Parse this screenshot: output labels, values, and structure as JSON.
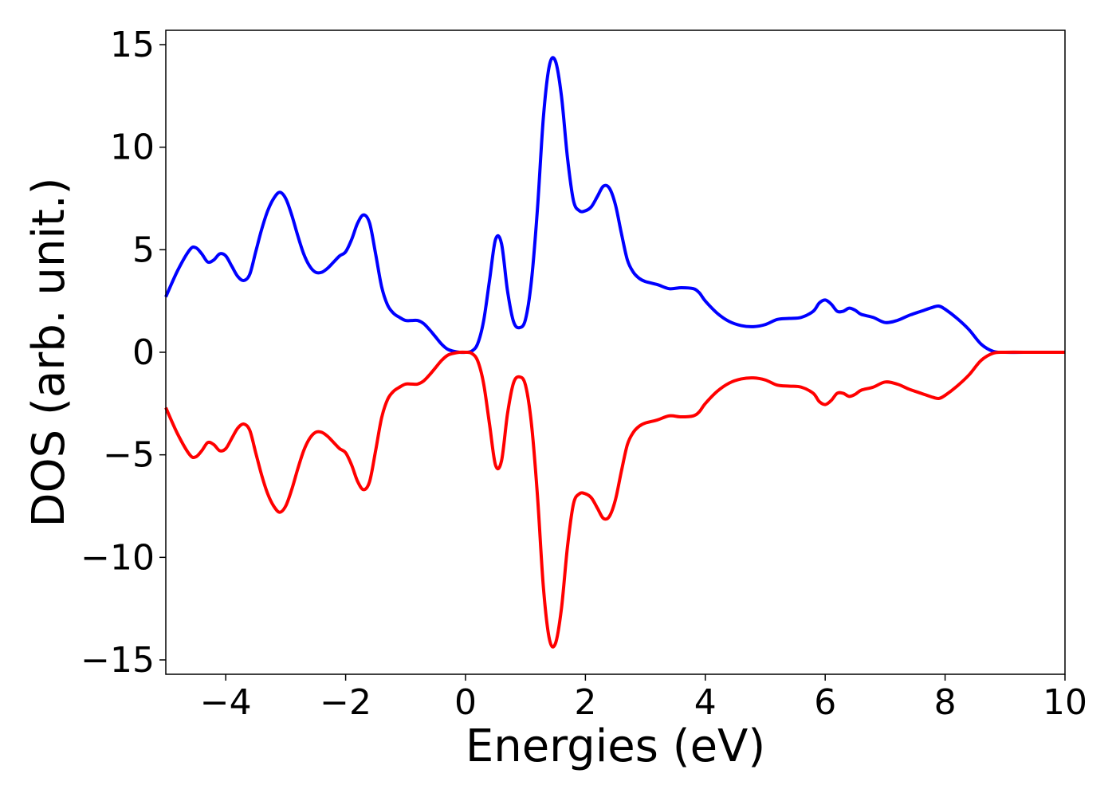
{
  "chart_data": {
    "type": "line",
    "title": "",
    "xlabel": "Energies (eV)",
    "ylabel": "DOS (arb. unit.)",
    "xlim": [
      -5,
      10
    ],
    "ylim": [
      -15.7,
      15.7
    ],
    "xticks": [
      -4,
      -2,
      0,
      2,
      4,
      6,
      8,
      10
    ],
    "yticks": [
      15,
      10,
      5,
      0,
      -5,
      -10,
      -15
    ],
    "xtick_labels": [
      "−4",
      "−2",
      "0",
      "2",
      "4",
      "6",
      "8",
      "10"
    ],
    "ytick_labels": [
      "15",
      "10",
      "5",
      "0",
      "−5",
      "−10",
      "−15"
    ],
    "grid": false,
    "legend": "none",
    "series": [
      {
        "color": "#0000ff",
        "x": [
          -5.0,
          -4.8,
          -4.6,
          -4.5,
          -4.4,
          -4.3,
          -4.2,
          -4.1,
          -4.0,
          -3.9,
          -3.8,
          -3.7,
          -3.6,
          -3.5,
          -3.4,
          -3.3,
          -3.2,
          -3.1,
          -3.0,
          -2.9,
          -2.8,
          -2.7,
          -2.6,
          -2.5,
          -2.4,
          -2.3,
          -2.2,
          -2.1,
          -2.0,
          -1.9,
          -1.8,
          -1.7,
          -1.6,
          -1.5,
          -1.4,
          -1.3,
          -1.2,
          -1.1,
          -1.0,
          -0.9,
          -0.8,
          -0.7,
          -0.6,
          -0.5,
          -0.4,
          -0.3,
          -0.2,
          -0.1,
          0.0,
          0.1,
          0.2,
          0.3,
          0.4,
          0.5,
          0.6,
          0.7,
          0.8,
          0.9,
          1.0,
          1.1,
          1.2,
          1.3,
          1.4,
          1.5,
          1.6,
          1.7,
          1.8,
          1.9,
          2.0,
          2.1,
          2.2,
          2.3,
          2.4,
          2.5,
          2.6,
          2.7,
          2.8,
          2.9,
          3.0,
          3.2,
          3.4,
          3.6,
          3.8,
          3.9,
          4.0,
          4.2,
          4.4,
          4.6,
          4.8,
          5.0,
          5.2,
          5.4,
          5.6,
          5.8,
          5.9,
          6.0,
          6.1,
          6.2,
          6.3,
          6.4,
          6.5,
          6.6,
          6.8,
          7.0,
          7.2,
          7.4,
          7.6,
          7.8,
          7.9,
          8.0,
          8.2,
          8.4,
          8.6,
          8.8,
          9.0,
          9.5,
          10.0
        ],
        "values": [
          2.7,
          4.0,
          5.0,
          5.1,
          4.8,
          4.4,
          4.5,
          4.8,
          4.7,
          4.2,
          3.7,
          3.5,
          3.8,
          4.9,
          6.0,
          6.9,
          7.5,
          7.8,
          7.5,
          6.7,
          5.7,
          4.8,
          4.2,
          3.9,
          3.9,
          4.1,
          4.4,
          4.7,
          4.9,
          5.5,
          6.3,
          6.7,
          6.3,
          4.8,
          3.2,
          2.3,
          1.9,
          1.7,
          1.55,
          1.55,
          1.55,
          1.4,
          1.1,
          0.75,
          0.4,
          0.15,
          0.05,
          0.0,
          0.0,
          0.05,
          0.4,
          1.5,
          3.5,
          5.5,
          5.3,
          3.0,
          1.5,
          1.2,
          1.6,
          3.5,
          7.0,
          11.5,
          14.0,
          14.2,
          12.5,
          9.5,
          7.4,
          6.9,
          6.9,
          7.1,
          7.6,
          8.1,
          8.0,
          7.2,
          5.8,
          4.5,
          3.9,
          3.6,
          3.45,
          3.3,
          3.1,
          3.15,
          3.1,
          2.9,
          2.5,
          1.9,
          1.5,
          1.3,
          1.25,
          1.35,
          1.6,
          1.65,
          1.7,
          2.0,
          2.4,
          2.55,
          2.35,
          2.0,
          2.0,
          2.15,
          2.05,
          1.85,
          1.7,
          1.45,
          1.55,
          1.8,
          2.0,
          2.2,
          2.25,
          2.1,
          1.65,
          1.1,
          0.4,
          0.05,
          0.0,
          0.0,
          0.0
        ]
      },
      {
        "color": "#ff0000",
        "x": [
          -5.0,
          -4.8,
          -4.6,
          -4.5,
          -4.4,
          -4.3,
          -4.2,
          -4.1,
          -4.0,
          -3.9,
          -3.8,
          -3.7,
          -3.6,
          -3.5,
          -3.4,
          -3.3,
          -3.2,
          -3.1,
          -3.0,
          -2.9,
          -2.8,
          -2.7,
          -2.6,
          -2.5,
          -2.4,
          -2.3,
          -2.2,
          -2.1,
          -2.0,
          -1.9,
          -1.8,
          -1.7,
          -1.6,
          -1.5,
          -1.4,
          -1.3,
          -1.2,
          -1.1,
          -1.0,
          -0.9,
          -0.8,
          -0.7,
          -0.6,
          -0.5,
          -0.4,
          -0.3,
          -0.2,
          -0.1,
          0.0,
          0.1,
          0.2,
          0.3,
          0.4,
          0.5,
          0.6,
          0.7,
          0.8,
          0.9,
          1.0,
          1.1,
          1.2,
          1.3,
          1.4,
          1.5,
          1.6,
          1.7,
          1.8,
          1.9,
          2.0,
          2.1,
          2.2,
          2.3,
          2.4,
          2.5,
          2.6,
          2.7,
          2.8,
          2.9,
          3.0,
          3.2,
          3.4,
          3.6,
          3.8,
          3.9,
          4.0,
          4.2,
          4.4,
          4.6,
          4.8,
          5.0,
          5.2,
          5.4,
          5.6,
          5.8,
          5.9,
          6.0,
          6.1,
          6.2,
          6.3,
          6.4,
          6.5,
          6.6,
          6.8,
          7.0,
          7.2,
          7.4,
          7.6,
          7.8,
          7.9,
          8.0,
          8.2,
          8.4,
          8.6,
          8.8,
          9.0,
          9.5,
          10.0
        ],
        "values": [
          -2.7,
          -4.0,
          -5.0,
          -5.1,
          -4.8,
          -4.4,
          -4.5,
          -4.8,
          -4.7,
          -4.2,
          -3.7,
          -3.5,
          -3.8,
          -4.9,
          -6.0,
          -6.9,
          -7.5,
          -7.8,
          -7.5,
          -6.7,
          -5.7,
          -4.8,
          -4.2,
          -3.9,
          -3.9,
          -4.1,
          -4.4,
          -4.7,
          -4.9,
          -5.5,
          -6.3,
          -6.7,
          -6.3,
          -4.8,
          -3.2,
          -2.3,
          -1.9,
          -1.7,
          -1.55,
          -1.55,
          -1.55,
          -1.4,
          -1.1,
          -0.75,
          -0.4,
          -0.15,
          -0.05,
          0.0,
          0.0,
          -0.05,
          -0.4,
          -1.5,
          -3.5,
          -5.5,
          -5.3,
          -3.0,
          -1.5,
          -1.2,
          -1.6,
          -3.5,
          -7.0,
          -11.5,
          -14.0,
          -14.2,
          -12.5,
          -9.5,
          -7.4,
          -6.9,
          -6.9,
          -7.1,
          -7.6,
          -8.1,
          -8.0,
          -7.2,
          -5.8,
          -4.5,
          -3.9,
          -3.6,
          -3.45,
          -3.3,
          -3.1,
          -3.15,
          -3.1,
          -2.9,
          -2.5,
          -1.9,
          -1.5,
          -1.3,
          -1.25,
          -1.35,
          -1.6,
          -1.65,
          -1.7,
          -2.0,
          -2.4,
          -2.55,
          -2.35,
          -2.0,
          -2.0,
          -2.15,
          -2.05,
          -1.85,
          -1.7,
          -1.45,
          -1.55,
          -1.8,
          -2.0,
          -2.2,
          -2.25,
          -2.1,
          -1.65,
          -1.1,
          -0.4,
          -0.05,
          0.0,
          0.0,
          0.0
        ]
      }
    ]
  }
}
